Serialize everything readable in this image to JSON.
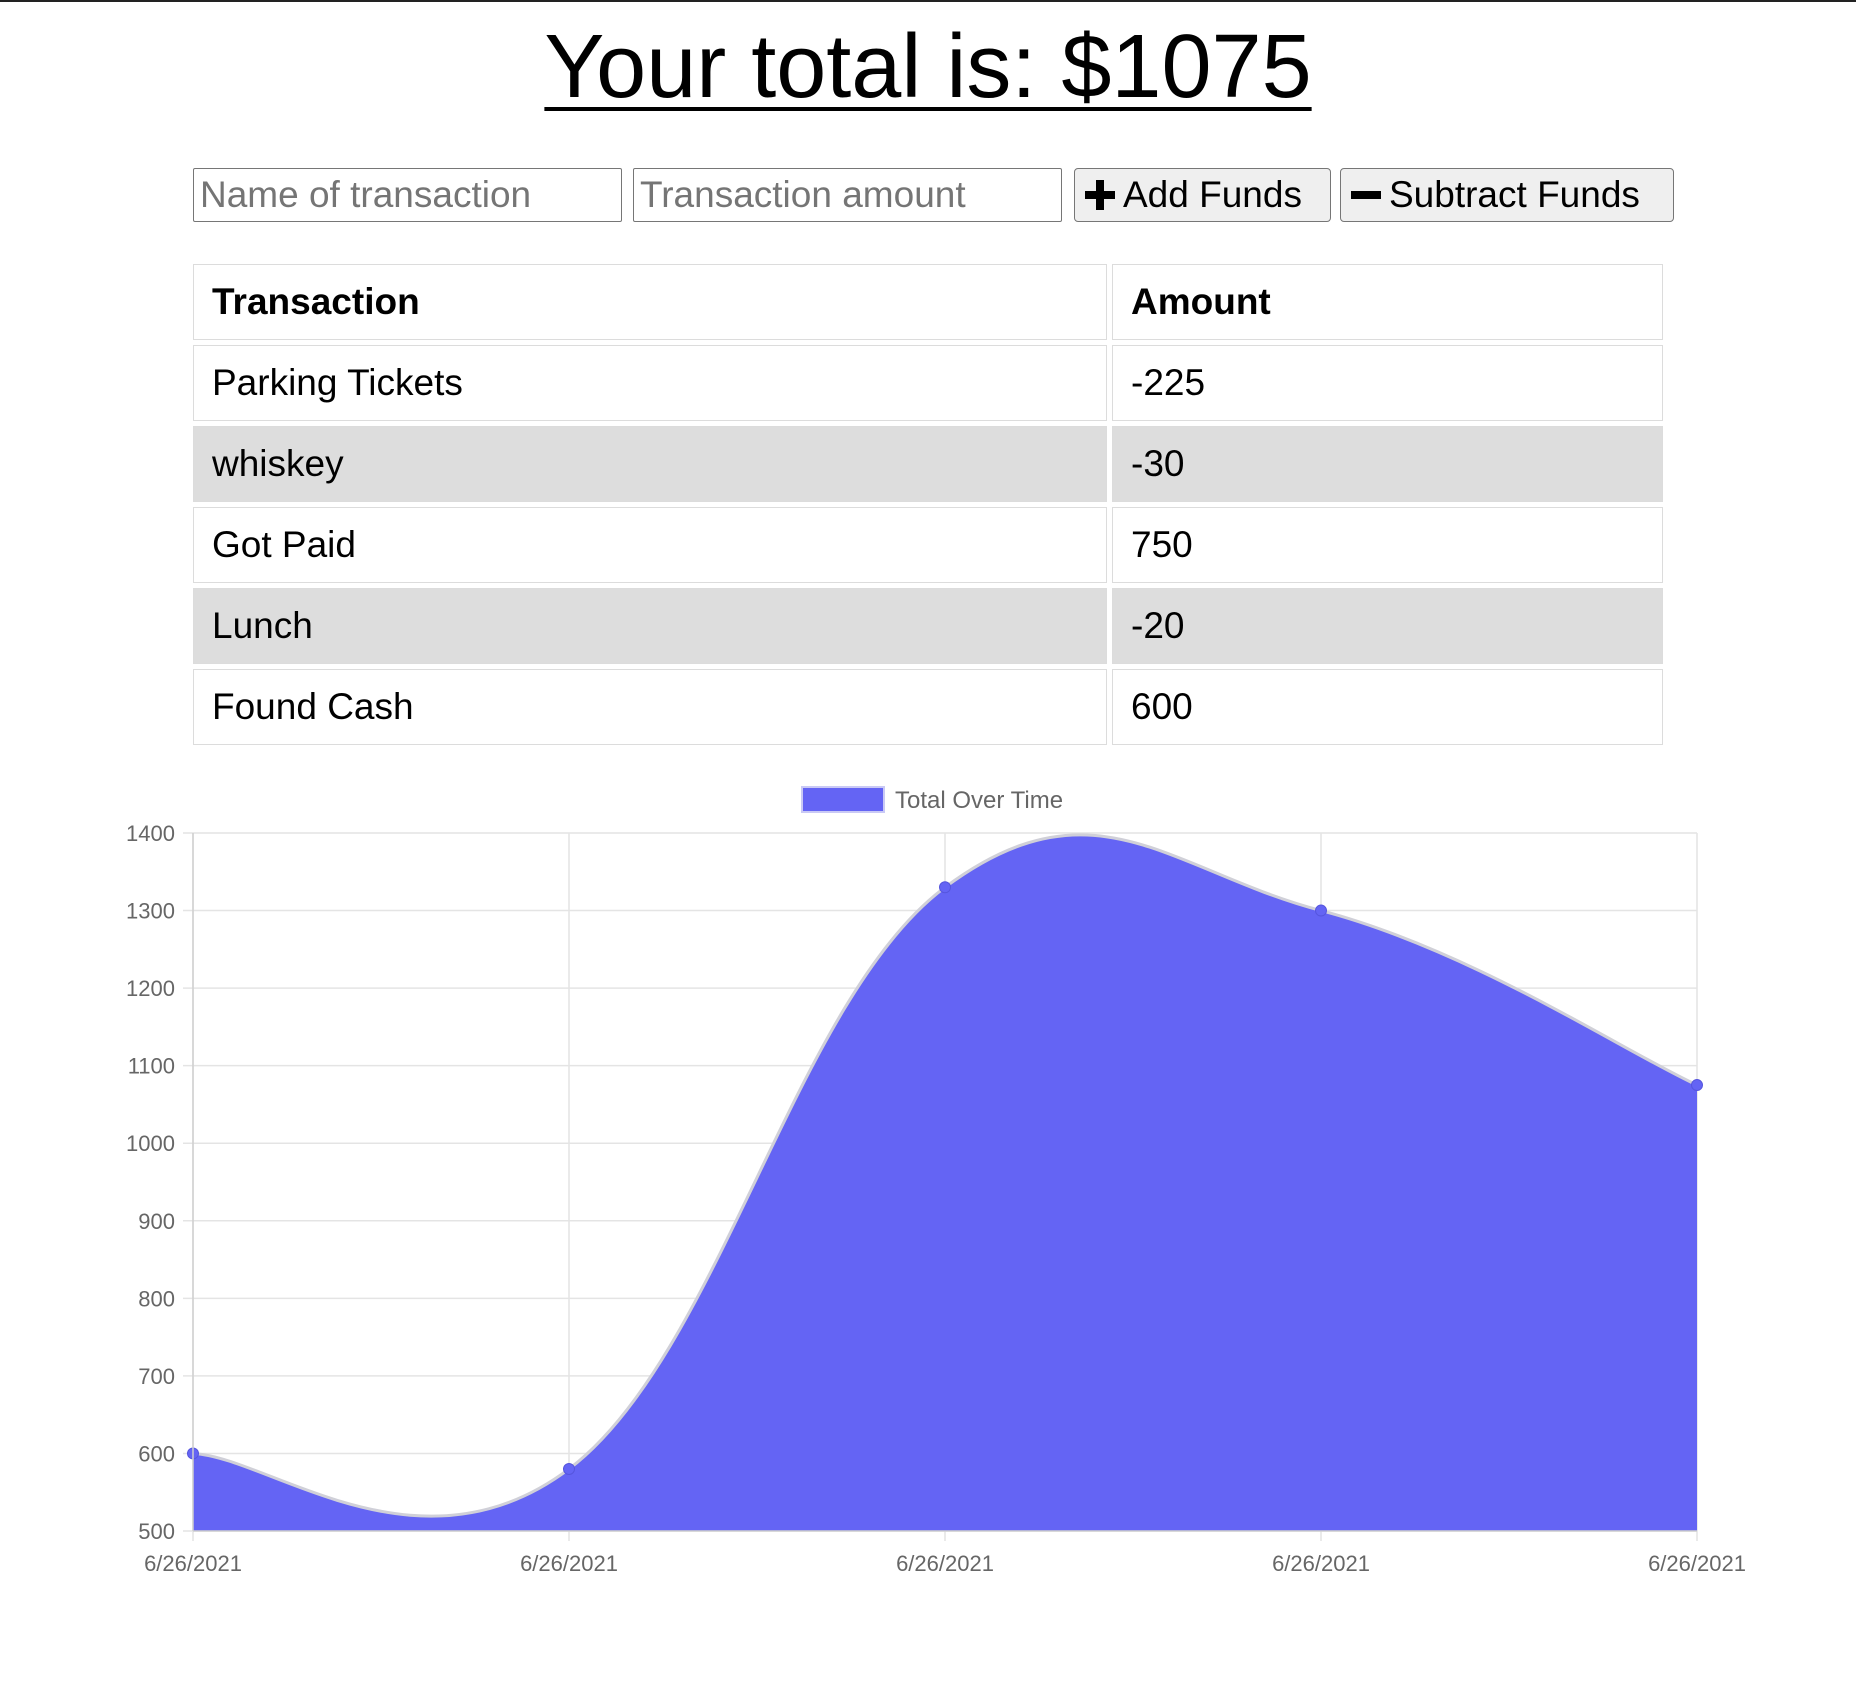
{
  "header": {
    "title": "Your total is: $1075"
  },
  "form": {
    "name_placeholder": "Name of transaction",
    "amount_placeholder": "Transaction amount",
    "add_label": "Add Funds",
    "subtract_label": "Subtract Funds",
    "add_icon": "plus-icon",
    "subtract_icon": "minus-icon"
  },
  "table": {
    "headers": [
      "Transaction",
      "Amount"
    ],
    "rows": [
      {
        "name": "Parking Tickets",
        "amount": "-225"
      },
      {
        "name": "whiskey",
        "amount": "-30"
      },
      {
        "name": "Got Paid",
        "amount": "750"
      },
      {
        "name": "Lunch",
        "amount": "-20"
      },
      {
        "name": "Found Cash",
        "amount": "600"
      }
    ]
  },
  "chart_data": {
    "type": "area",
    "title": "",
    "xlabel": "",
    "ylabel": "",
    "legend_position": "top",
    "grid": true,
    "x": [
      "6/26/2021",
      "6/26/2021",
      "6/26/2021",
      "6/26/2021",
      "6/26/2021"
    ],
    "series": [
      {
        "name": "Total Over Time",
        "values": [
          600,
          580,
          1330,
          1300,
          1075
        ],
        "color": "#6464f4"
      }
    ],
    "ylim": [
      500,
      1400
    ],
    "yticks": [
      500,
      600,
      700,
      800,
      900,
      1000,
      1100,
      1200,
      1300,
      1400
    ]
  }
}
